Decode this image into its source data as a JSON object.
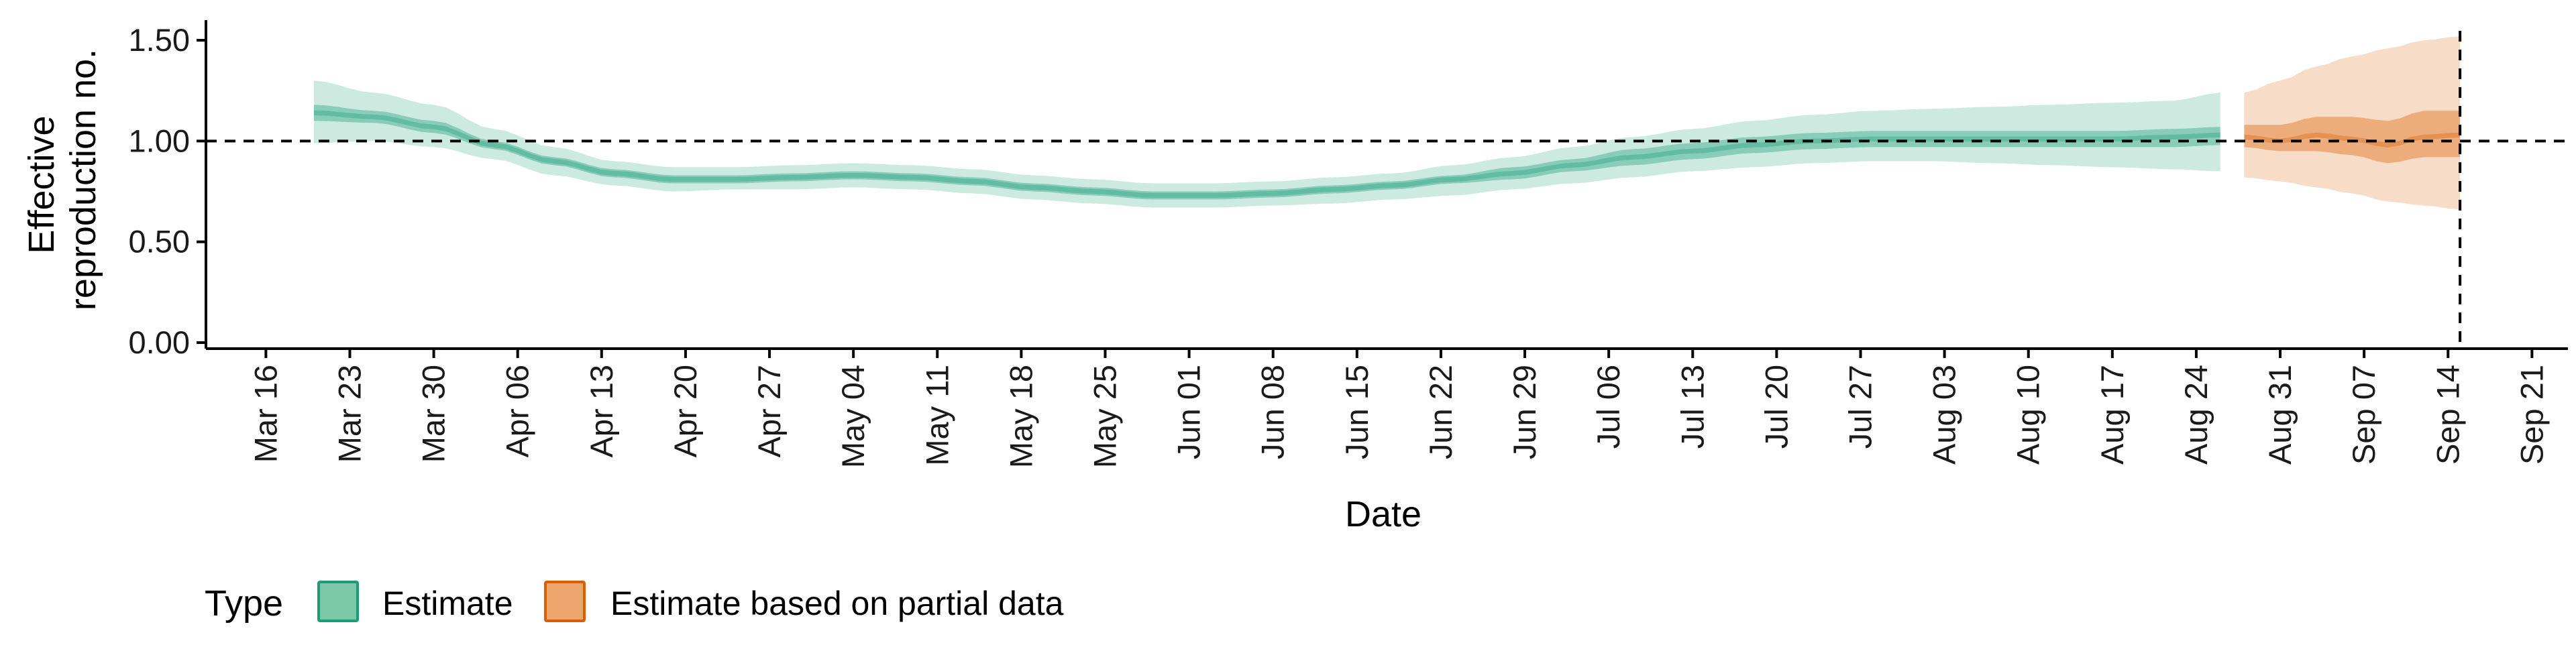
{
  "chart_data": {
    "type": "area",
    "xlabel": "Date",
    "ylabel_lines": [
      "Effective",
      "reproduction no."
    ],
    "x_start": "2020-03-16",
    "x_end": "2020-09-21",
    "xlim": [
      "2020-03-11",
      "2020-09-24"
    ],
    "ylim": [
      -0.03,
      1.6
    ],
    "y_ticks": [
      0.0,
      0.5,
      1.0,
      1.5
    ],
    "y_tick_labels": [
      "0.00",
      "0.50",
      "1.00",
      "1.50"
    ],
    "x_tick_labels": [
      "Mar 16",
      "Mar 23",
      "Mar 30",
      "Apr 06",
      "Apr 13",
      "Apr 20",
      "Apr 27",
      "May 04",
      "May 11",
      "May 18",
      "May 25",
      "Jun 01",
      "Jun 08",
      "Jun 15",
      "Jun 22",
      "Jun 29",
      "Jul 06",
      "Jul 13",
      "Jul 20",
      "Jul 27",
      "Aug 03",
      "Aug 10",
      "Aug 17",
      "Aug 24",
      "Aug 31",
      "Sep 07",
      "Sep 14",
      "Sep 21"
    ],
    "reference_hline": 1.0,
    "reference_vline": "2020-09-15",
    "legend": {
      "title": "Type",
      "position": "bottom-left",
      "entries": [
        {
          "label": "Estimate",
          "fill": "#7cc7a8",
          "stroke": "#1b9e77"
        },
        {
          "label": "Estimate based on partial data",
          "fill": "#eca56a",
          "stroke": "#d95f02"
        }
      ]
    },
    "series": [
      {
        "name": "Estimate",
        "color": "#1b9e77",
        "x": [
          "2020-03-20",
          "2020-03-25",
          "2020-03-30",
          "2020-04-04",
          "2020-04-09",
          "2020-04-14",
          "2020-04-19",
          "2020-04-24",
          "2020-04-29",
          "2020-05-04",
          "2020-05-09",
          "2020-05-14",
          "2020-05-19",
          "2020-05-24",
          "2020-05-29",
          "2020-06-03",
          "2020-06-08",
          "2020-06-13",
          "2020-06-18",
          "2020-06-23",
          "2020-06-28",
          "2020-07-03",
          "2020-07-08",
          "2020-07-13",
          "2020-07-18",
          "2020-07-23",
          "2020-07-28",
          "2020-08-02",
          "2020-08-07",
          "2020-08-12",
          "2020-08-17",
          "2020-08-22",
          "2020-08-26"
        ],
        "median": [
          1.14,
          1.12,
          1.07,
          0.98,
          0.9,
          0.84,
          0.81,
          0.81,
          0.82,
          0.83,
          0.82,
          0.8,
          0.77,
          0.75,
          0.73,
          0.73,
          0.74,
          0.76,
          0.78,
          0.81,
          0.84,
          0.88,
          0.92,
          0.95,
          0.98,
          1.0,
          1.01,
          1.01,
          1.01,
          1.01,
          1.01,
          1.02,
          1.03
        ],
        "lower_50": [
          1.1,
          1.09,
          1.04,
          0.96,
          0.88,
          0.82,
          0.79,
          0.79,
          0.8,
          0.81,
          0.8,
          0.78,
          0.75,
          0.73,
          0.71,
          0.71,
          0.72,
          0.74,
          0.76,
          0.79,
          0.81,
          0.85,
          0.88,
          0.91,
          0.94,
          0.96,
          0.97,
          0.97,
          0.97,
          0.97,
          0.97,
          0.97,
          0.98
        ],
        "upper_50": [
          1.18,
          1.15,
          1.1,
          1.0,
          0.92,
          0.86,
          0.83,
          0.83,
          0.84,
          0.85,
          0.84,
          0.82,
          0.79,
          0.77,
          0.75,
          0.75,
          0.76,
          0.78,
          0.8,
          0.83,
          0.87,
          0.91,
          0.96,
          0.99,
          1.02,
          1.04,
          1.05,
          1.05,
          1.05,
          1.05,
          1.05,
          1.06,
          1.07
        ],
        "lower_90": [
          0.99,
          1.0,
          0.97,
          0.91,
          0.83,
          0.78,
          0.75,
          0.76,
          0.76,
          0.77,
          0.76,
          0.74,
          0.71,
          0.69,
          0.67,
          0.67,
          0.68,
          0.69,
          0.71,
          0.73,
          0.76,
          0.79,
          0.82,
          0.85,
          0.87,
          0.89,
          0.9,
          0.9,
          0.89,
          0.88,
          0.87,
          0.86,
          0.85
        ],
        "upper_90": [
          1.3,
          1.24,
          1.18,
          1.06,
          0.97,
          0.9,
          0.87,
          0.87,
          0.88,
          0.89,
          0.88,
          0.86,
          0.83,
          0.81,
          0.79,
          0.79,
          0.8,
          0.82,
          0.84,
          0.88,
          0.92,
          0.97,
          1.02,
          1.06,
          1.1,
          1.13,
          1.15,
          1.16,
          1.17,
          1.18,
          1.19,
          1.2,
          1.24
        ]
      },
      {
        "name": "Estimate based on partial data",
        "color": "#d95f02",
        "x": [
          "2020-08-28",
          "2020-08-31",
          "2020-09-03",
          "2020-09-06",
          "2020-09-09",
          "2020-09-12",
          "2020-09-15"
        ],
        "median": [
          1.02,
          1.0,
          1.03,
          1.01,
          0.98,
          1.02,
          1.03
        ],
        "lower_50": [
          0.97,
          0.95,
          0.95,
          0.93,
          0.89,
          0.92,
          0.92
        ],
        "upper_50": [
          1.08,
          1.08,
          1.12,
          1.12,
          1.1,
          1.15,
          1.15
        ],
        "lower_90": [
          0.82,
          0.8,
          0.77,
          0.74,
          0.7,
          0.68,
          0.66
        ],
        "upper_90": [
          1.24,
          1.3,
          1.37,
          1.42,
          1.46,
          1.5,
          1.52
        ]
      }
    ]
  }
}
